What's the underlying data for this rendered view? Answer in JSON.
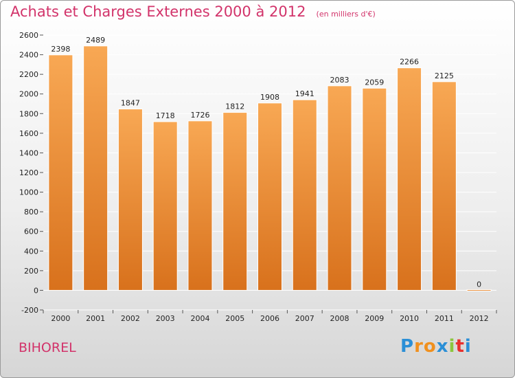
{
  "title": "Achats et Charges Externes 2000 à 2012",
  "unit_note": "(en milliers d'€)",
  "town": "BIHOREL",
  "logo": {
    "letters": [
      "P",
      "r",
      "o",
      "x",
      "i",
      "t",
      "i"
    ],
    "colors": [
      "#2b8fd6",
      "#f0901e",
      "#f0901e",
      "#2b8fd6",
      "#8cc63e",
      "#e8302e",
      "#2b8fd6"
    ]
  },
  "colors": {
    "accent": "#d2336a",
    "bar_top": "#f8a854",
    "bar_bottom": "#d8711c",
    "bar_edge": "#ffffff",
    "grid": "#ffffff"
  },
  "chart_data": {
    "type": "bar",
    "title": "Achats et Charges Externes 2000 à 2012",
    "categories": [
      "2000",
      "2001",
      "2002",
      "2003",
      "2004",
      "2005",
      "2006",
      "2007",
      "2008",
      "2009",
      "2010",
      "2011",
      "2012"
    ],
    "values": [
      2398,
      2489,
      1847,
      1718,
      1726,
      1812,
      1908,
      1941,
      2083,
      2059,
      2266,
      2125,
      0
    ],
    "value_labels": [
      "2398",
      "2489",
      "1847",
      "1718",
      "1726",
      "1812",
      "1908",
      "1941",
      "2083",
      "2059",
      "2266",
      "2125",
      "0"
    ],
    "xlabel": "",
    "ylabel": "",
    "ylim": [
      -200,
      2600
    ],
    "yticks": [
      -200,
      0,
      200,
      400,
      600,
      800,
      1000,
      1200,
      1400,
      1600,
      1800,
      2000,
      2200,
      2400,
      2600
    ],
    "grid": true,
    "legend": "none"
  }
}
